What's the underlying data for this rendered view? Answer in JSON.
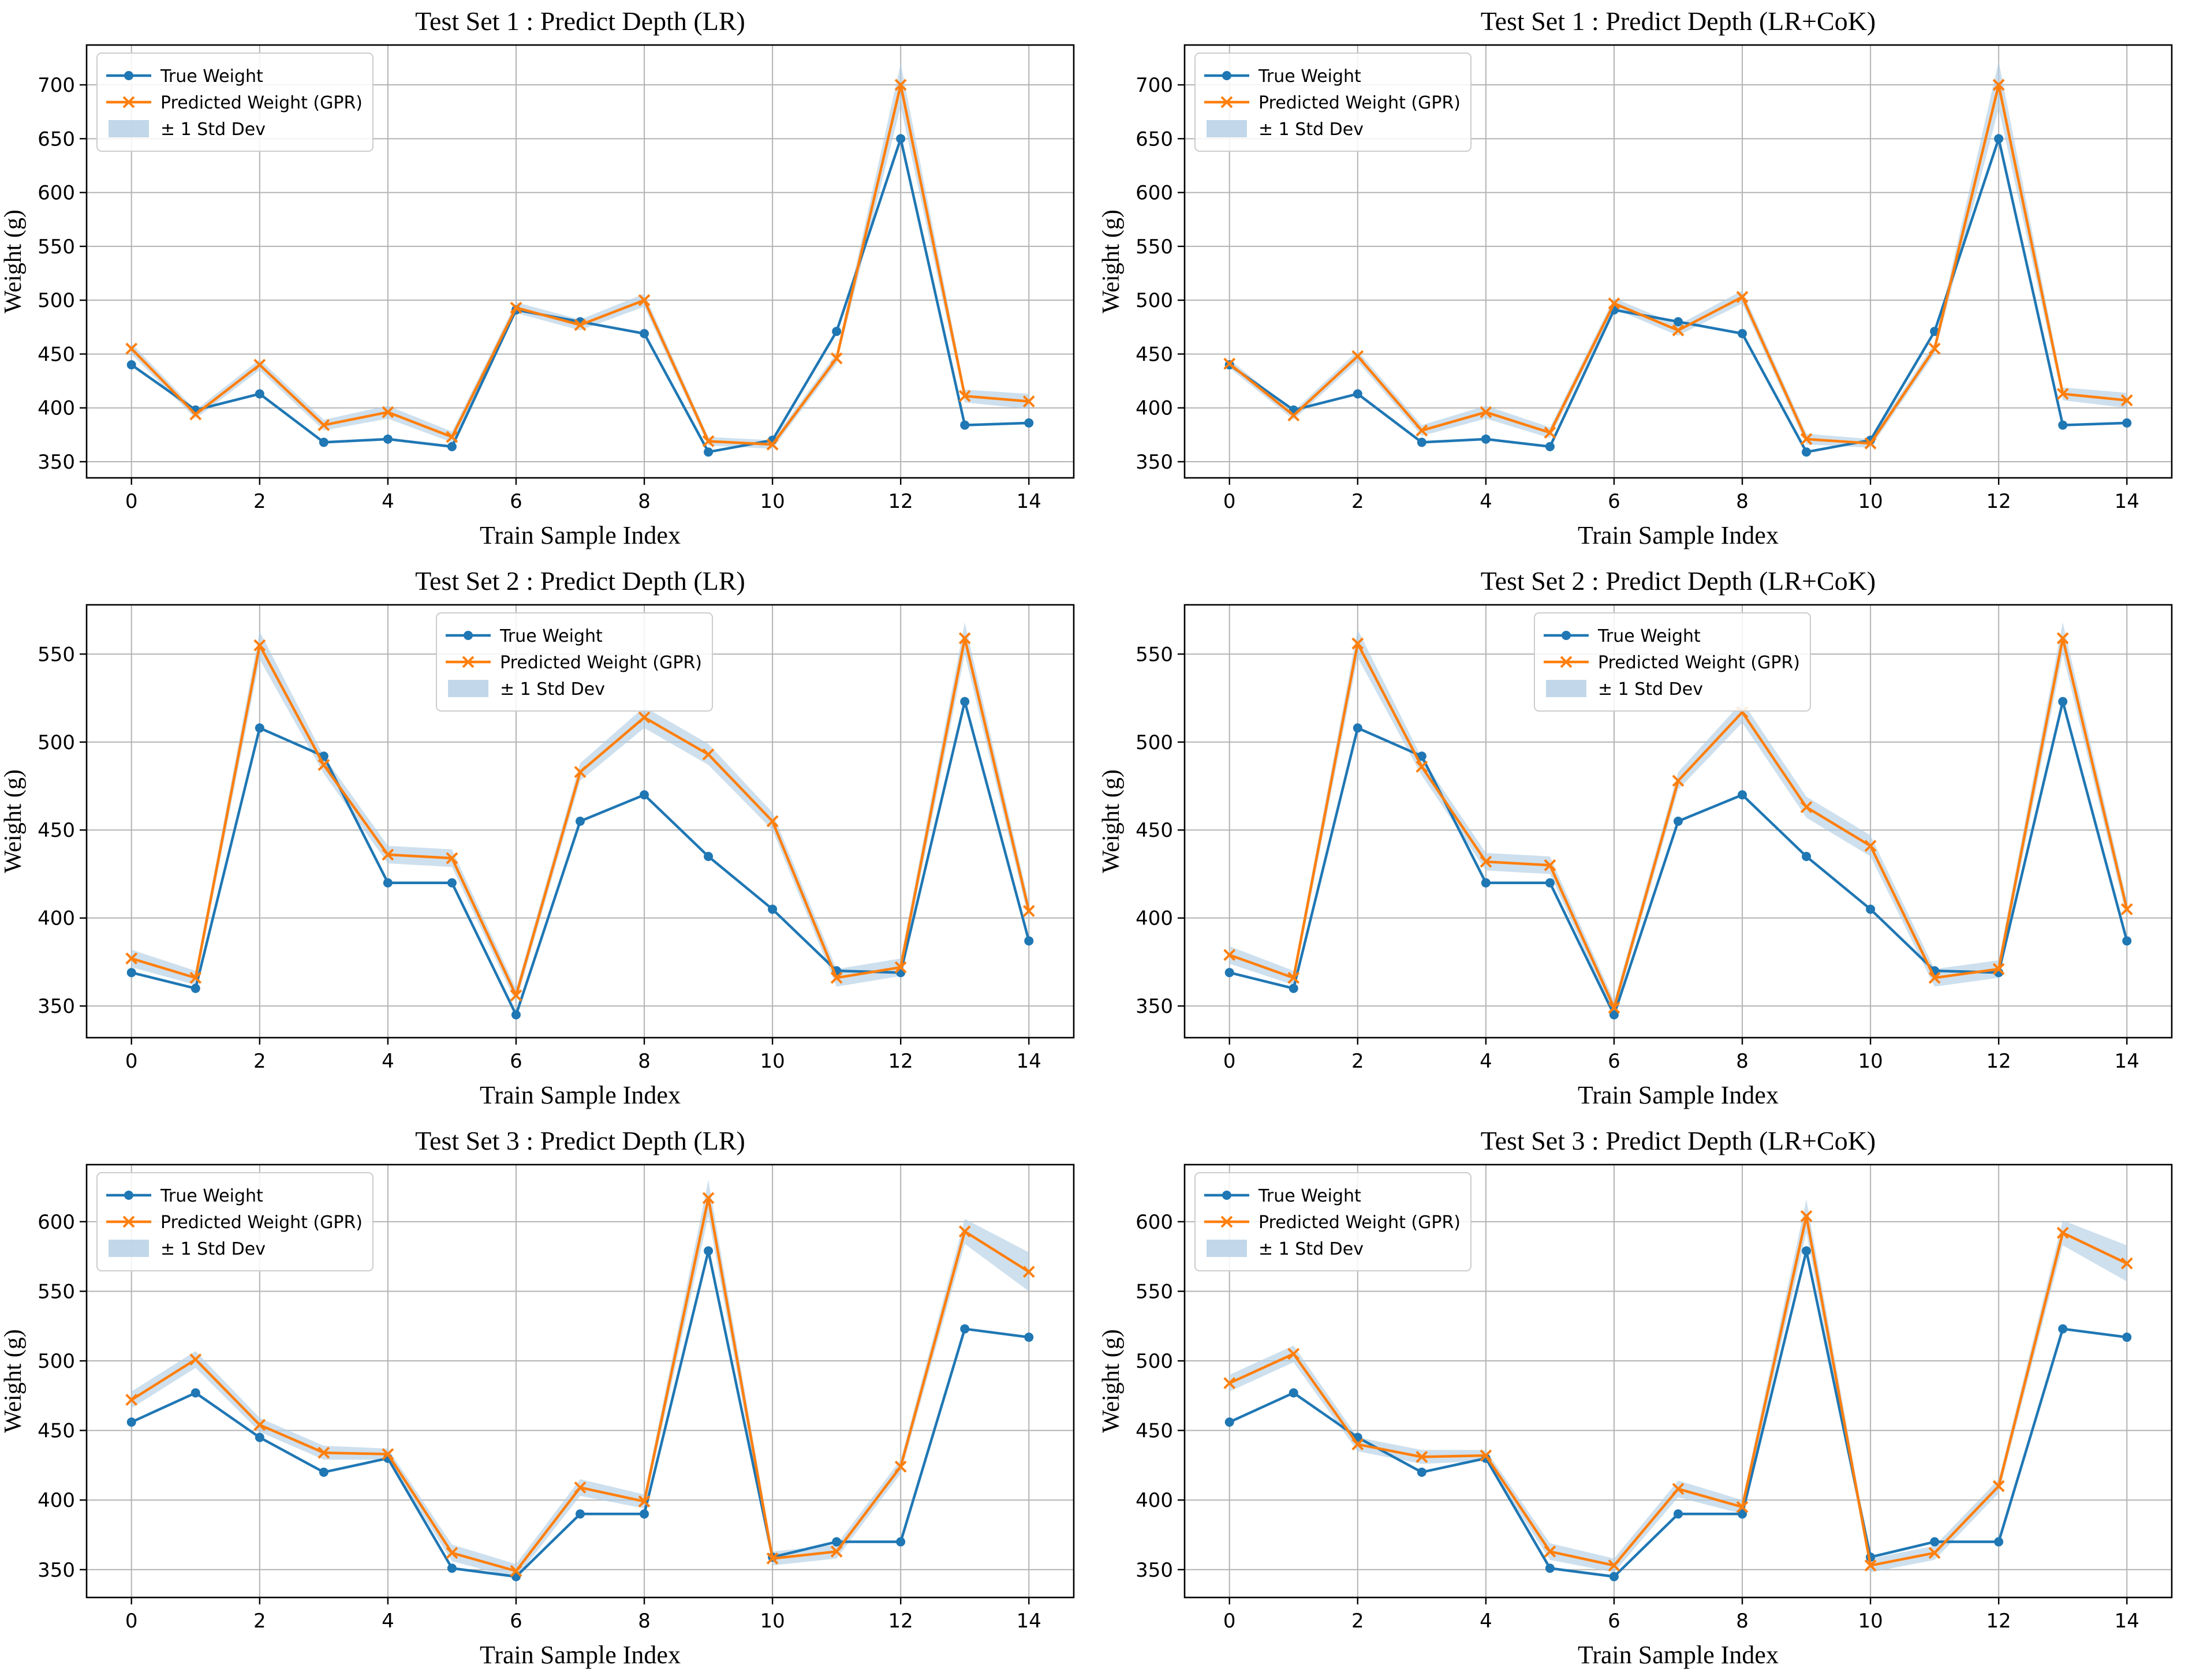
{
  "figure": {
    "background": "#ffffff"
  },
  "style": {
    "true_color": "#1f77b4",
    "pred_color": "#ff7f0e",
    "band_color": "#aecbe3",
    "grid_color": "#b3b3b3",
    "spine_color": "#000000",
    "text_color": "#000000",
    "legend_border": "#cccccc",
    "legend_bg": "rgba(255,255,255,0.85)"
  },
  "chart_data": [
    {
      "type": "line",
      "id": "test-set-1-lr",
      "title": "Test Set 1 : Predict Depth (LR)",
      "xlabel": "Train Sample Index",
      "ylabel": "Weight (g)",
      "x": [
        0,
        1,
        2,
        3,
        4,
        5,
        6,
        7,
        8,
        9,
        10,
        11,
        12,
        13,
        14
      ],
      "series": [
        {
          "name": "True Weight",
          "marker": "circle",
          "values": [
            440,
            398,
            413,
            368,
            371,
            364,
            491,
            480,
            469,
            359,
            370,
            471,
            650,
            384,
            386
          ]
        },
        {
          "name": "Predicted Weight (GPR)",
          "marker": "x",
          "values": [
            455,
            394,
            440,
            384,
            396,
            373,
            493,
            477,
            500,
            369,
            366,
            446,
            700,
            411,
            406
          ]
        }
      ],
      "band": {
        "name": "± 1 Std Dev",
        "around": "Predicted Weight (GPR)",
        "std": [
          5,
          4,
          5,
          5,
          6,
          5,
          5,
          5,
          6,
          4,
          4,
          5,
          20,
          6,
          7
        ]
      },
      "xlim": [
        -0.7,
        14.7
      ],
      "ylim": [
        335,
        737
      ],
      "xticks": [
        0,
        2,
        4,
        6,
        8,
        10,
        12,
        14
      ],
      "yticks": [
        350,
        400,
        450,
        500,
        550,
        600,
        650,
        700
      ],
      "grid": true,
      "legend_position": "upper-left"
    },
    {
      "type": "line",
      "id": "test-set-1-lr-cok",
      "title": "Test Set 1 : Predict Depth (LR+CoK)",
      "xlabel": "Train Sample Index",
      "ylabel": "Weight (g)",
      "x": [
        0,
        1,
        2,
        3,
        4,
        5,
        6,
        7,
        8,
        9,
        10,
        11,
        12,
        13,
        14
      ],
      "series": [
        {
          "name": "True Weight",
          "marker": "circle",
          "values": [
            440,
            398,
            413,
            368,
            371,
            364,
            491,
            480,
            469,
            359,
            370,
            471,
            650,
            384,
            386
          ]
        },
        {
          "name": "Predicted Weight (GPR)",
          "marker": "x",
          "values": [
            441,
            393,
            448,
            379,
            396,
            377,
            497,
            472,
            503,
            371,
            367,
            455,
            700,
            413,
            407
          ]
        }
      ],
      "band": {
        "name": "± 1 Std Dev",
        "around": "Predicted Weight (GPR)",
        "std": [
          4,
          4,
          5,
          5,
          6,
          5,
          5,
          5,
          6,
          5,
          4,
          5,
          22,
          6,
          7
        ]
      },
      "xlim": [
        -0.7,
        14.7
      ],
      "ylim": [
        335,
        737
      ],
      "xticks": [
        0,
        2,
        4,
        6,
        8,
        10,
        12,
        14
      ],
      "yticks": [
        350,
        400,
        450,
        500,
        550,
        600,
        650,
        700
      ],
      "grid": true,
      "legend_position": "upper-left"
    },
    {
      "type": "line",
      "id": "test-set-2-lr",
      "title": "Test Set 2 : Predict Depth (LR)",
      "xlabel": "Train Sample Index",
      "ylabel": "Weight (g)",
      "x": [
        0,
        1,
        2,
        3,
        4,
        5,
        6,
        7,
        8,
        9,
        10,
        11,
        12,
        13,
        14
      ],
      "series": [
        {
          "name": "True Weight",
          "marker": "circle",
          "values": [
            369,
            360,
            508,
            492,
            420,
            420,
            345,
            455,
            470,
            435,
            405,
            370,
            369,
            523,
            387
          ]
        },
        {
          "name": "Predicted Weight (GPR)",
          "marker": "x",
          "values": [
            377,
            366,
            555,
            487,
            436,
            434,
            356,
            483,
            514,
            493,
            455,
            366,
            372,
            559,
            404
          ]
        }
      ],
      "band": {
        "name": "± 1 Std Dev",
        "around": "Predicted Weight (GPR)",
        "std": [
          5,
          4,
          8,
          5,
          5,
          5,
          4,
          5,
          6,
          6,
          5,
          5,
          5,
          9,
          5
        ]
      },
      "xlim": [
        -0.7,
        14.7
      ],
      "ylim": [
        332,
        578
      ],
      "xticks": [
        0,
        2,
        4,
        6,
        8,
        10,
        12,
        14
      ],
      "yticks": [
        350,
        400,
        450,
        500,
        550
      ],
      "grid": true,
      "legend_position": "upper-center"
    },
    {
      "type": "line",
      "id": "test-set-2-lr-cok",
      "title": "Test Set 2 : Predict Depth (LR+CoK)",
      "xlabel": "Train Sample Index",
      "ylabel": "Weight (g)",
      "x": [
        0,
        1,
        2,
        3,
        4,
        5,
        6,
        7,
        8,
        9,
        10,
        11,
        12,
        13,
        14
      ],
      "series": [
        {
          "name": "True Weight",
          "marker": "circle",
          "values": [
            369,
            360,
            508,
            492,
            420,
            420,
            345,
            455,
            470,
            435,
            405,
            370,
            369,
            523,
            387
          ]
        },
        {
          "name": "Predicted Weight (GPR)",
          "marker": "x",
          "values": [
            379,
            366,
            556,
            486,
            432,
            430,
            349,
            478,
            517,
            463,
            441,
            366,
            371,
            559,
            405
          ]
        }
      ],
      "band": {
        "name": "± 1 Std Dev",
        "around": "Predicted Weight (GPR)",
        "std": [
          5,
          4,
          8,
          5,
          5,
          5,
          4,
          5,
          6,
          6,
          6,
          5,
          5,
          9,
          5
        ]
      },
      "xlim": [
        -0.7,
        14.7
      ],
      "ylim": [
        332,
        578
      ],
      "xticks": [
        0,
        2,
        4,
        6,
        8,
        10,
        12,
        14
      ],
      "yticks": [
        350,
        400,
        450,
        500,
        550
      ],
      "grid": true,
      "legend_position": "upper-center"
    },
    {
      "type": "line",
      "id": "test-set-3-lr",
      "title": "Test Set 3 : Predict Depth (LR)",
      "xlabel": "Train Sample Index",
      "ylabel": "Weight (g)",
      "x": [
        0,
        1,
        2,
        3,
        4,
        5,
        6,
        7,
        8,
        9,
        10,
        11,
        12,
        13,
        14
      ],
      "series": [
        {
          "name": "True Weight",
          "marker": "circle",
          "values": [
            456,
            477,
            445,
            420,
            430,
            351,
            345,
            390,
            390,
            579,
            359,
            370,
            370,
            523,
            517
          ]
        },
        {
          "name": "Predicted Weight (GPR)",
          "marker": "x",
          "values": [
            472,
            501,
            454,
            434,
            433,
            362,
            349,
            409,
            399,
            617,
            358,
            363,
            424,
            593,
            564
          ]
        }
      ],
      "band": {
        "name": "± 1 Std Dev",
        "around": "Predicted Weight (GPR)",
        "std": [
          6,
          6,
          5,
          5,
          4,
          6,
          5,
          6,
          5,
          13,
          5,
          5,
          5,
          9,
          14
        ]
      },
      "xlim": [
        -0.7,
        14.7
      ],
      "ylim": [
        330,
        641
      ],
      "xticks": [
        0,
        2,
        4,
        6,
        8,
        10,
        12,
        14
      ],
      "yticks": [
        350,
        400,
        450,
        500,
        550,
        600
      ],
      "grid": true,
      "legend_position": "upper-left"
    },
    {
      "type": "line",
      "id": "test-set-3-lr-cok",
      "title": "Test Set 3 : Predict Depth (LR+CoK)",
      "xlabel": "Train Sample Index",
      "ylabel": "Weight (g)",
      "x": [
        0,
        1,
        2,
        3,
        4,
        5,
        6,
        7,
        8,
        9,
        10,
        11,
        12,
        13,
        14
      ],
      "series": [
        {
          "name": "True Weight",
          "marker": "circle",
          "values": [
            456,
            477,
            445,
            420,
            430,
            351,
            345,
            390,
            390,
            579,
            359,
            370,
            370,
            523,
            517
          ]
        },
        {
          "name": "Predicted Weight (GPR)",
          "marker": "x",
          "values": [
            484,
            505,
            440,
            431,
            432,
            363,
            353,
            408,
            395,
            604,
            353,
            362,
            410,
            592,
            570
          ]
        }
      ],
      "band": {
        "name": "± 1 Std Dev",
        "around": "Predicted Weight (GPR)",
        "std": [
          6,
          6,
          5,
          5,
          4,
          6,
          5,
          6,
          5,
          12,
          5,
          5,
          5,
          9,
          13
        ]
      },
      "xlim": [
        -0.7,
        14.7
      ],
      "ylim": [
        330,
        641
      ],
      "xticks": [
        0,
        2,
        4,
        6,
        8,
        10,
        12,
        14
      ],
      "yticks": [
        350,
        400,
        450,
        500,
        550,
        600
      ],
      "grid": true,
      "legend_position": "upper-left"
    }
  ]
}
